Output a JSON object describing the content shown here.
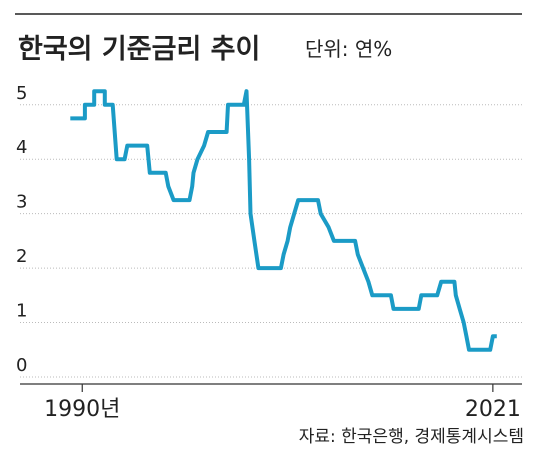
{
  "chart_data": {
    "type": "line",
    "title": "한국의 기준금리 추이",
    "subtitle": "단위: 연%",
    "source": "자료: 한국은행, 경제통계시스템",
    "x": [
      1989.1,
      1990.2,
      1990.2,
      1990.9,
      1990.9,
      1991.7,
      1991.7,
      1992.3,
      1992.6,
      1993.2,
      1993.4,
      1994.9,
      1995.1,
      1996.3,
      1996.5,
      1996.9,
      1998.1,
      1998.3,
      1998.4,
      1998.7,
      1999.2,
      1999.5,
      2000.9,
      2001.0,
      2002.2,
      2002.4,
      2002.6,
      2002.7,
      2003.0,
      2003.3,
      2005.0,
      2005.2,
      2005.5,
      2005.7,
      2006.0,
      2006.3,
      2007.8,
      2008.0,
      2008.6,
      2009.0,
      2010.6,
      2010.8,
      2011.2,
      2011.6,
      2011.9,
      2013.3,
      2013.5,
      2015.4,
      2015.6,
      2016.8,
      2017.1,
      2018.1,
      2018.2,
      2018.5,
      2018.8,
      2019.0,
      2019.2,
      2020.8,
      2021.0,
      2021.3
    ],
    "values": [
      4.75,
      4.75,
      5,
      5,
      5.25,
      5.25,
      5,
      5,
      4,
      4,
      4.25,
      4.25,
      3.75,
      3.75,
      3.5,
      3.25,
      3.25,
      3.5,
      3.75,
      4,
      4.25,
      4.5,
      4.5,
      5,
      5,
      5.25,
      4,
      3,
      2.5,
      2,
      2,
      2.25,
      2.5,
      2.75,
      3,
      3.25,
      3.25,
      3,
      2.75,
      2.5,
      2.5,
      2.25,
      2,
      1.75,
      1.5,
      1.5,
      1.25,
      1.25,
      1.5,
      1.5,
      1.75,
      1.75,
      1.5,
      1.25,
      1,
      0.75,
      0.5,
      0.5,
      0.75,
      0.75
    ],
    "color": "#1b9bc6",
    "xlim": [
      1985.3,
      2023.2
    ],
    "xticks": [
      {
        "value": 1990,
        "label": "1990년"
      },
      2021
    ],
    "ylim": [
      0,
      5.4
    ],
    "yticks": [
      0,
      1,
      2,
      3,
      4,
      5
    ],
    "grid": true
  }
}
